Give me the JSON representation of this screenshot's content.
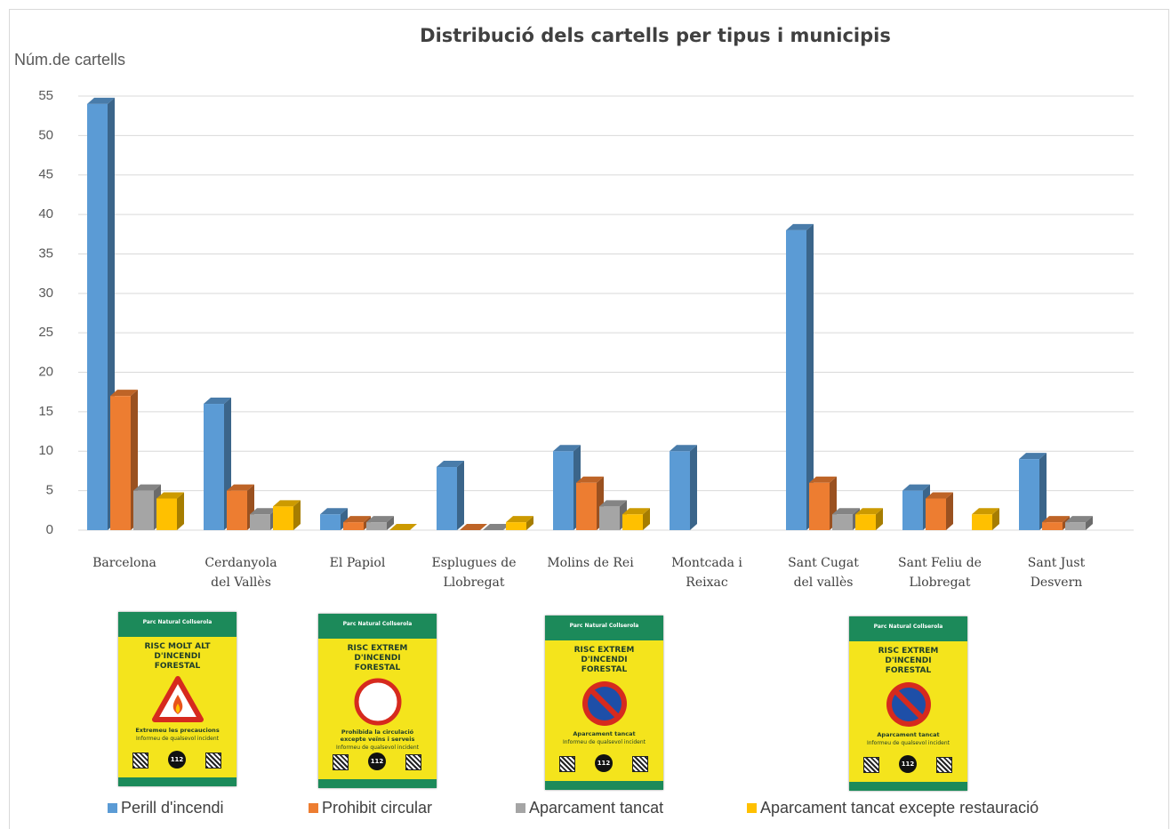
{
  "chart_data": {
    "type": "bar3d",
    "title": "Distribució dels cartells per tipus i municipis",
    "y_label": "Núm.de cartells",
    "categories": [
      "Barcelona",
      "Cerdanyola del Vallès",
      "El Papiol",
      "Esplugues de Llobregat",
      "Molins de Rei",
      "Montcada i Reixac",
      "Sant Cugat del vallès",
      "Sant Feliu de Llobregat",
      "Sant Just Desvern"
    ],
    "series": [
      {
        "name": "Perill d'incendi",
        "color": "#5b9bd5",
        "values": [
          54,
          16,
          2,
          8,
          10,
          10,
          38,
          5,
          9
        ]
      },
      {
        "name": "Prohibit circular",
        "color": "#ed7d31",
        "values": [
          17,
          5,
          1,
          0,
          6,
          null,
          6,
          4,
          1
        ]
      },
      {
        "name": "Aparcament tancat",
        "color": "#a5a5a5",
        "values": [
          5,
          2,
          1,
          0,
          3,
          null,
          2,
          null,
          1
        ]
      },
      {
        "name": "Aparcament tancat excepte restauració",
        "color": "#ffc000",
        "values": [
          4,
          3,
          0,
          1,
          2,
          null,
          2,
          2,
          null
        ]
      }
    ],
    "ylim": [
      0,
      55
    ],
    "yticks": [
      0,
      5,
      10,
      15,
      20,
      25,
      30,
      35,
      40,
      45,
      50,
      55
    ],
    "grid": true
  },
  "signs": [
    {
      "brand": "Parc Natural Collserola",
      "title": "RISC MOLT ALT D'INCENDI FORESTAL",
      "text": "Extremeu les precaucions",
      "note": "Informeu de qualsevol incident",
      "phone": "112"
    },
    {
      "brand": "Parc Natural Collserola",
      "title": "RISC EXTREM D'INCENDI FORESTAL",
      "text": "Prohibida la circulació excepte veïns i serveis",
      "note": "Informeu de qualsevol incident",
      "phone": "112"
    },
    {
      "brand": "Parc Natural Collserola",
      "title": "RISC EXTREM D'INCENDI FORESTAL",
      "text": "Aparcament tancat",
      "note": "Informeu de qualsevol incident",
      "phone": "112"
    },
    {
      "brand": "Parc Natural Collserola",
      "title": "RISC EXTREM D'INCENDI FORESTAL",
      "text": "Aparcament tancat",
      "note": "Informeu de qualsevol incident",
      "phone": "112"
    }
  ]
}
